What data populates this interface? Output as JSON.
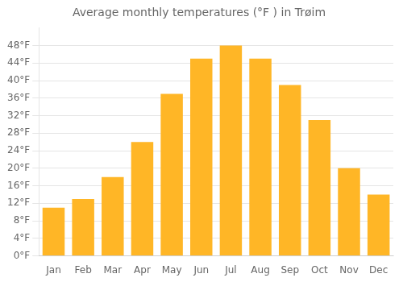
{
  "chart_data": {
    "type": "bar",
    "title": "Average monthly temperatures (°F ) in Trøim",
    "categories": [
      "Jan",
      "Feb",
      "Mar",
      "Apr",
      "May",
      "Jun",
      "Jul",
      "Aug",
      "Sep",
      "Oct",
      "Nov",
      "Dec"
    ],
    "values": [
      11,
      13,
      18,
      26,
      37,
      45,
      48,
      45,
      39,
      31,
      20,
      14
    ],
    "color": "#FFB626",
    "ylim": [
      0,
      52
    ],
    "yticks": [
      {
        "value": 0,
        "label": "0°F"
      },
      {
        "value": 4,
        "label": "4°F"
      },
      {
        "value": 8,
        "label": "8°F"
      },
      {
        "value": 12,
        "label": "12°F"
      },
      {
        "value": 16,
        "label": "16°F"
      },
      {
        "value": 20,
        "label": "20°F"
      },
      {
        "value": 24,
        "label": "24°F"
      },
      {
        "value": 28,
        "label": "28°F"
      },
      {
        "value": 32,
        "label": "32°F"
      },
      {
        "value": 36,
        "label": "36°F"
      },
      {
        "value": 40,
        "label": "40°F"
      },
      {
        "value": 44,
        "label": "44°F"
      },
      {
        "value": 48,
        "label": "48°F"
      }
    ],
    "grid": true
  }
}
